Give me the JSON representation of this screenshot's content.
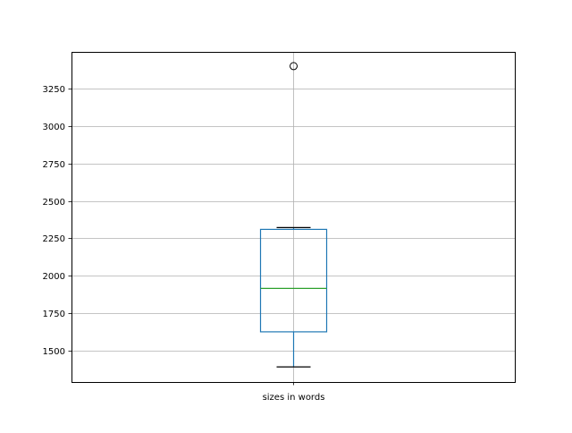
{
  "chart_data": {
    "type": "box",
    "categories": [
      "sizes in words"
    ],
    "boxes": [
      {
        "category": "sizes in words",
        "whisker_low": 1392,
        "q1": 1626,
        "median": 1916,
        "q3": 2310,
        "whisker_high": 2322,
        "outliers": [
          3400
        ]
      }
    ],
    "yticks": [
      1500,
      1750,
      2000,
      2250,
      2500,
      2750,
      3000,
      3250
    ],
    "ylim": [
      1291,
      3495
    ],
    "grid": true,
    "title": "",
    "xlabel": "",
    "ylabel": "",
    "colors": {
      "box": "#1f77b4",
      "median": "#2ca02c",
      "whisker": "#1f77b4",
      "cap": "#000000",
      "grid": "#b0b0b0"
    }
  }
}
